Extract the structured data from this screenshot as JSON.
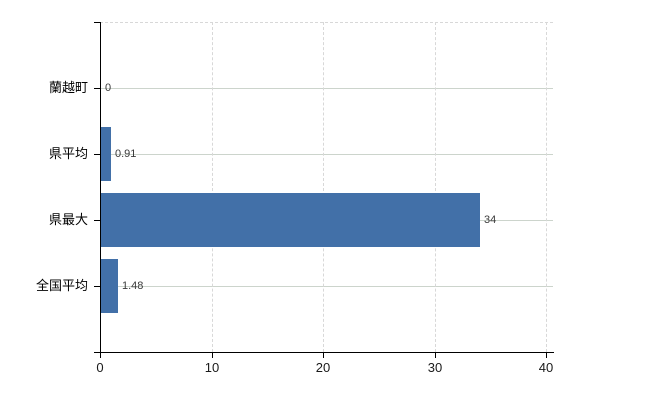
{
  "chart_data": {
    "type": "bar",
    "orientation": "horizontal",
    "title": "",
    "xlabel": "",
    "ylabel": "",
    "categories": [
      "蘭越町",
      "県平均",
      "県最大",
      "全国平均"
    ],
    "values": [
      0,
      0.91,
      34,
      1.48
    ],
    "value_labels": [
      "0",
      "0.91",
      "34",
      "1.48"
    ],
    "x_ticks": [
      0,
      10,
      20,
      30,
      40
    ],
    "x_tick_labels": [
      "0",
      "10",
      "20",
      "30",
      "40"
    ],
    "xlim": [
      0,
      40
    ],
    "grid": true,
    "legend": false,
    "colors": {
      "bar": "#4270a8",
      "horizontal_grid": "#ccd4cc",
      "vertical_grid": "#d8d8d8",
      "axis": "#000000",
      "value_label_text": "#3a3a3a",
      "tick_label_text": "#1a1a1a",
      "background": "#ffffff"
    }
  }
}
